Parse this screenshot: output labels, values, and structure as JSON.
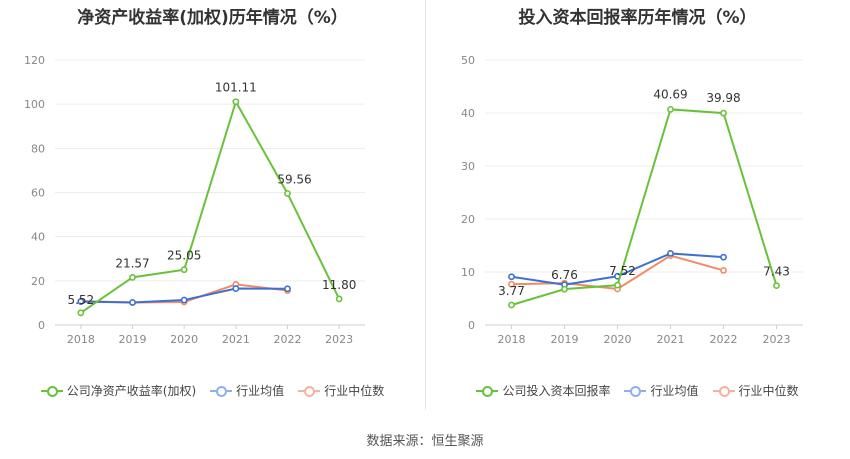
{
  "footer": {
    "source": "数据来源：恒生聚源"
  },
  "chart_data": [
    {
      "type": "line",
      "title": "净资产收益率(加权)历年情况（%）",
      "categories": [
        "2018",
        "2019",
        "2020",
        "2021",
        "2022",
        "2023"
      ],
      "ylim": [
        0,
        120
      ],
      "yticks": [
        0,
        20,
        40,
        60,
        80,
        100,
        120
      ],
      "grid": true,
      "legend_placement": "bottom",
      "series": [
        {
          "name": "公司净资产收益率(加权)",
          "color": "#67c23a",
          "values": [
            5.52,
            21.57,
            25.05,
            101.11,
            59.56,
            11.8
          ],
          "labels": [
            "5.52",
            "21.57",
            "25.05",
            "101.11",
            "59.56",
            "11.80"
          ]
        },
        {
          "name": "行业均值",
          "color": "#3d6fd4",
          "legend_color": "#8fb0ec",
          "values": [
            10.6,
            10.2,
            11.3,
            16.5,
            16.4,
            null
          ]
        },
        {
          "name": "行业中位数",
          "color": "#f08a67",
          "legend_color": "#f5b39d",
          "values": [
            10.8,
            10.2,
            10.4,
            18.4,
            15.6,
            null
          ]
        }
      ]
    },
    {
      "type": "line",
      "title": "投入资本回报率历年情况（%）",
      "categories": [
        "2018",
        "2019",
        "2020",
        "2021",
        "2022",
        "2023"
      ],
      "ylim": [
        0,
        50
      ],
      "yticks": [
        0,
        10,
        20,
        30,
        40,
        50
      ],
      "grid": true,
      "legend_placement": "bottom",
      "series": [
        {
          "name": "公司投入资本回报率",
          "color": "#67c23a",
          "values": [
            3.77,
            6.76,
            7.52,
            40.69,
            39.98,
            7.43
          ],
          "labels": [
            "3.77",
            "6.76",
            "7.52",
            "40.69",
            "39.98",
            "7.43"
          ]
        },
        {
          "name": "行业均值",
          "color": "#3d6fd4",
          "legend_color": "#8fb0ec",
          "values": [
            9.1,
            7.6,
            9.2,
            13.5,
            12.8,
            null
          ]
        },
        {
          "name": "行业中位数",
          "color": "#f08a67",
          "legend_color": "#f5b39d",
          "values": [
            7.7,
            7.9,
            6.8,
            13.1,
            10.3,
            null
          ]
        }
      ]
    }
  ]
}
